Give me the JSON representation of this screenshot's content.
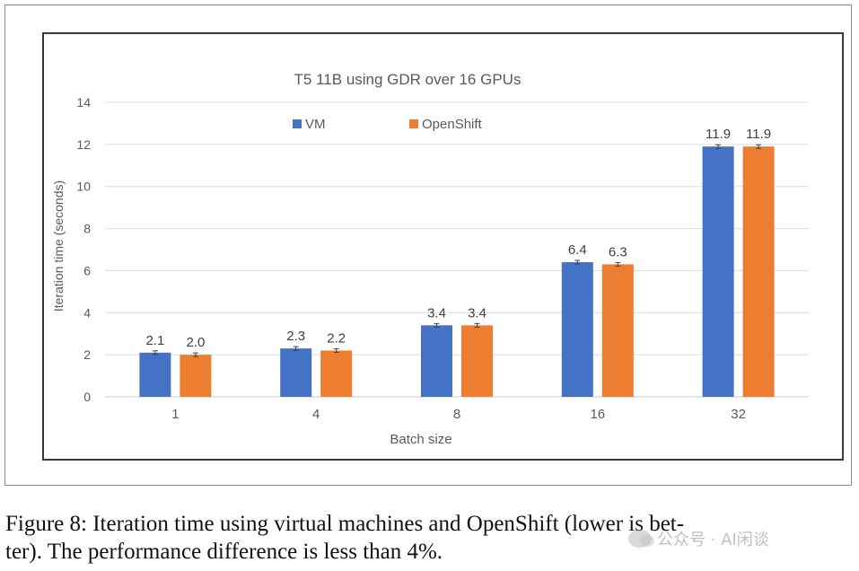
{
  "chart_data": {
    "type": "bar",
    "title": "T5 11B using GDR over 16 GPUs",
    "xlabel": "Batch size",
    "ylabel": "Iteration time (seconds)",
    "categories": [
      "1",
      "4",
      "8",
      "16",
      "32"
    ],
    "ylim": [
      0,
      14
    ],
    "yticks": [
      0,
      2,
      4,
      6,
      8,
      10,
      12,
      14
    ],
    "grid": true,
    "legend_position": "top-left",
    "error_bars": true,
    "series": [
      {
        "name": "VM",
        "color": "#4472C4",
        "values": [
          2.1,
          2.3,
          3.4,
          6.4,
          11.9
        ],
        "labels": [
          "2.1",
          "2.3",
          "3.4",
          "6.4",
          "11.9"
        ]
      },
      {
        "name": "OpenShift",
        "color": "#ED7D31",
        "values": [
          2.0,
          2.2,
          3.4,
          6.3,
          11.9
        ],
        "labels": [
          "2.0",
          "2.2",
          "3.4",
          "6.3",
          "11.9"
        ]
      }
    ]
  },
  "caption": {
    "line1": "Figure 8: Iteration time using virtual machines and OpenShift (lower is bet-",
    "line2": "ter). The performance difference is less than 4%."
  },
  "watermark": {
    "text": "公众号 · AI闲谈",
    "icon": "wechat-icon"
  }
}
